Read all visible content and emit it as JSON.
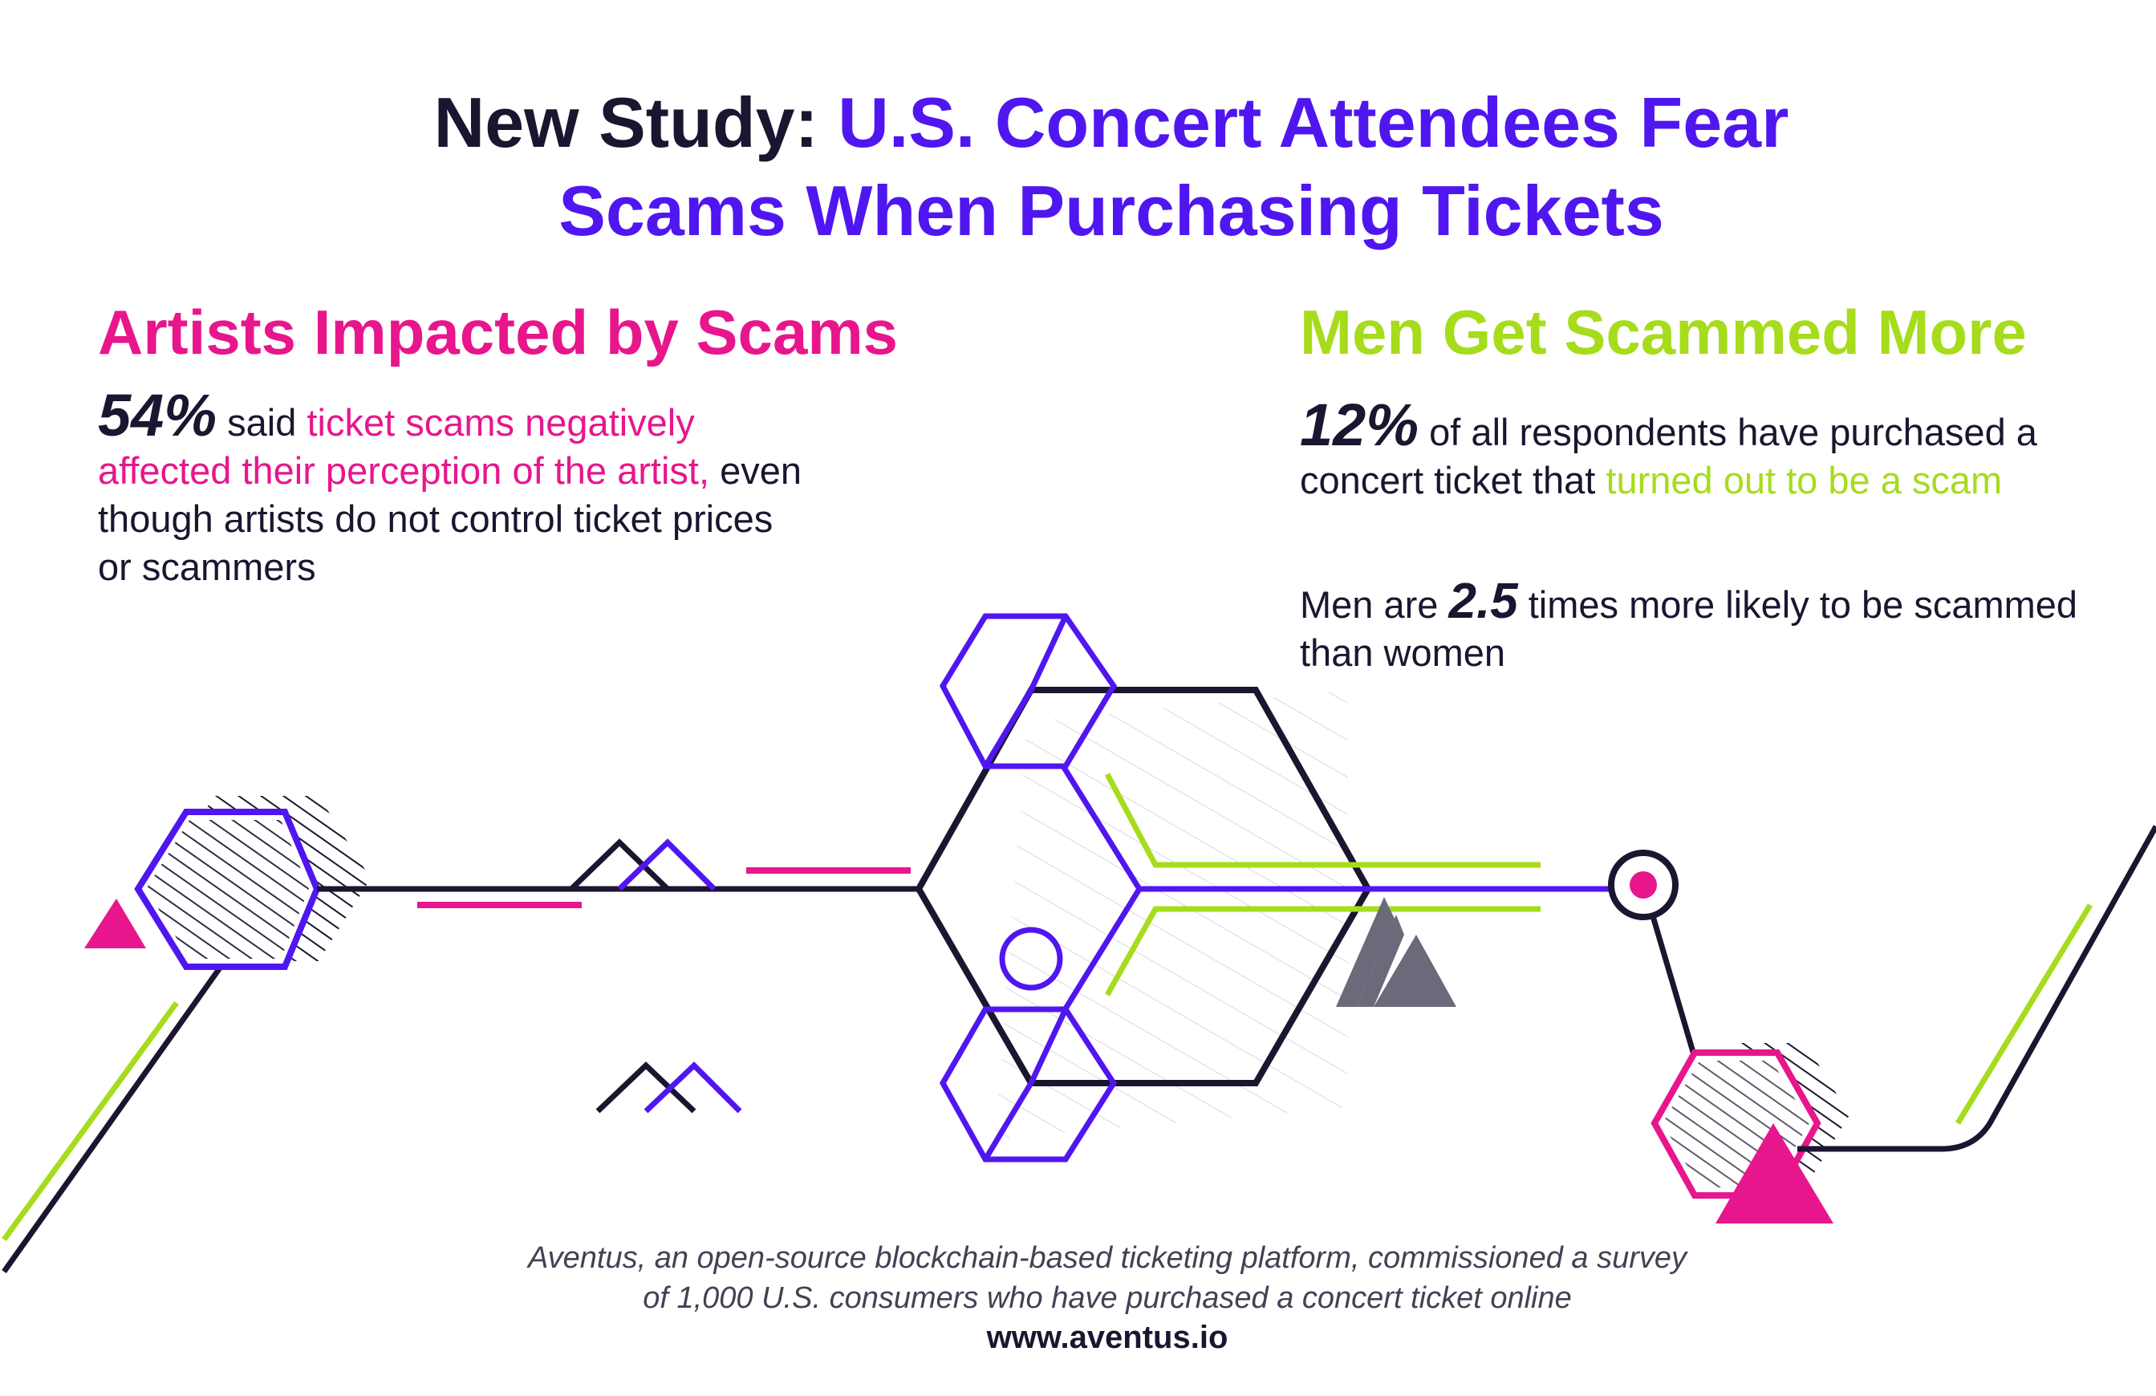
{
  "header": {
    "title_prefix": "New Study:",
    "title_line1": "U.S. Concert Attendees Fear",
    "title_line2": "Scams When Purchasing Tickets"
  },
  "artists_section": {
    "heading": "Artists Impacted by Scams",
    "stat": "54%",
    "text_a": "said",
    "text_highlight": "ticket scams negatively affected their perception of the artist,",
    "text_b": "even though artists do not control ticket prices or scammers"
  },
  "men_section": {
    "heading": "Men Get Scammed More",
    "stat": "12%",
    "text_a": "of all respondents have purchased a concert ticket that",
    "text_highlight": "turned out to be a scam",
    "men_prefix": "Men are",
    "multiplier": "2.5",
    "men_suffix": "times more likely to be scammed than women"
  },
  "footer": {
    "note_line1": "Aventus, an open-source blockchain-based ticketing platform, commissioned a survey",
    "note_line2": "of 1,000 U.S. consumers who have purchased a concert ticket online",
    "url": "www.aventus.io"
  },
  "colors": {
    "dark": "#1c1530",
    "purple": "#5016f0",
    "pink": "#e8168c",
    "green": "#a6dc1c",
    "gray": "#6b6a7a"
  }
}
